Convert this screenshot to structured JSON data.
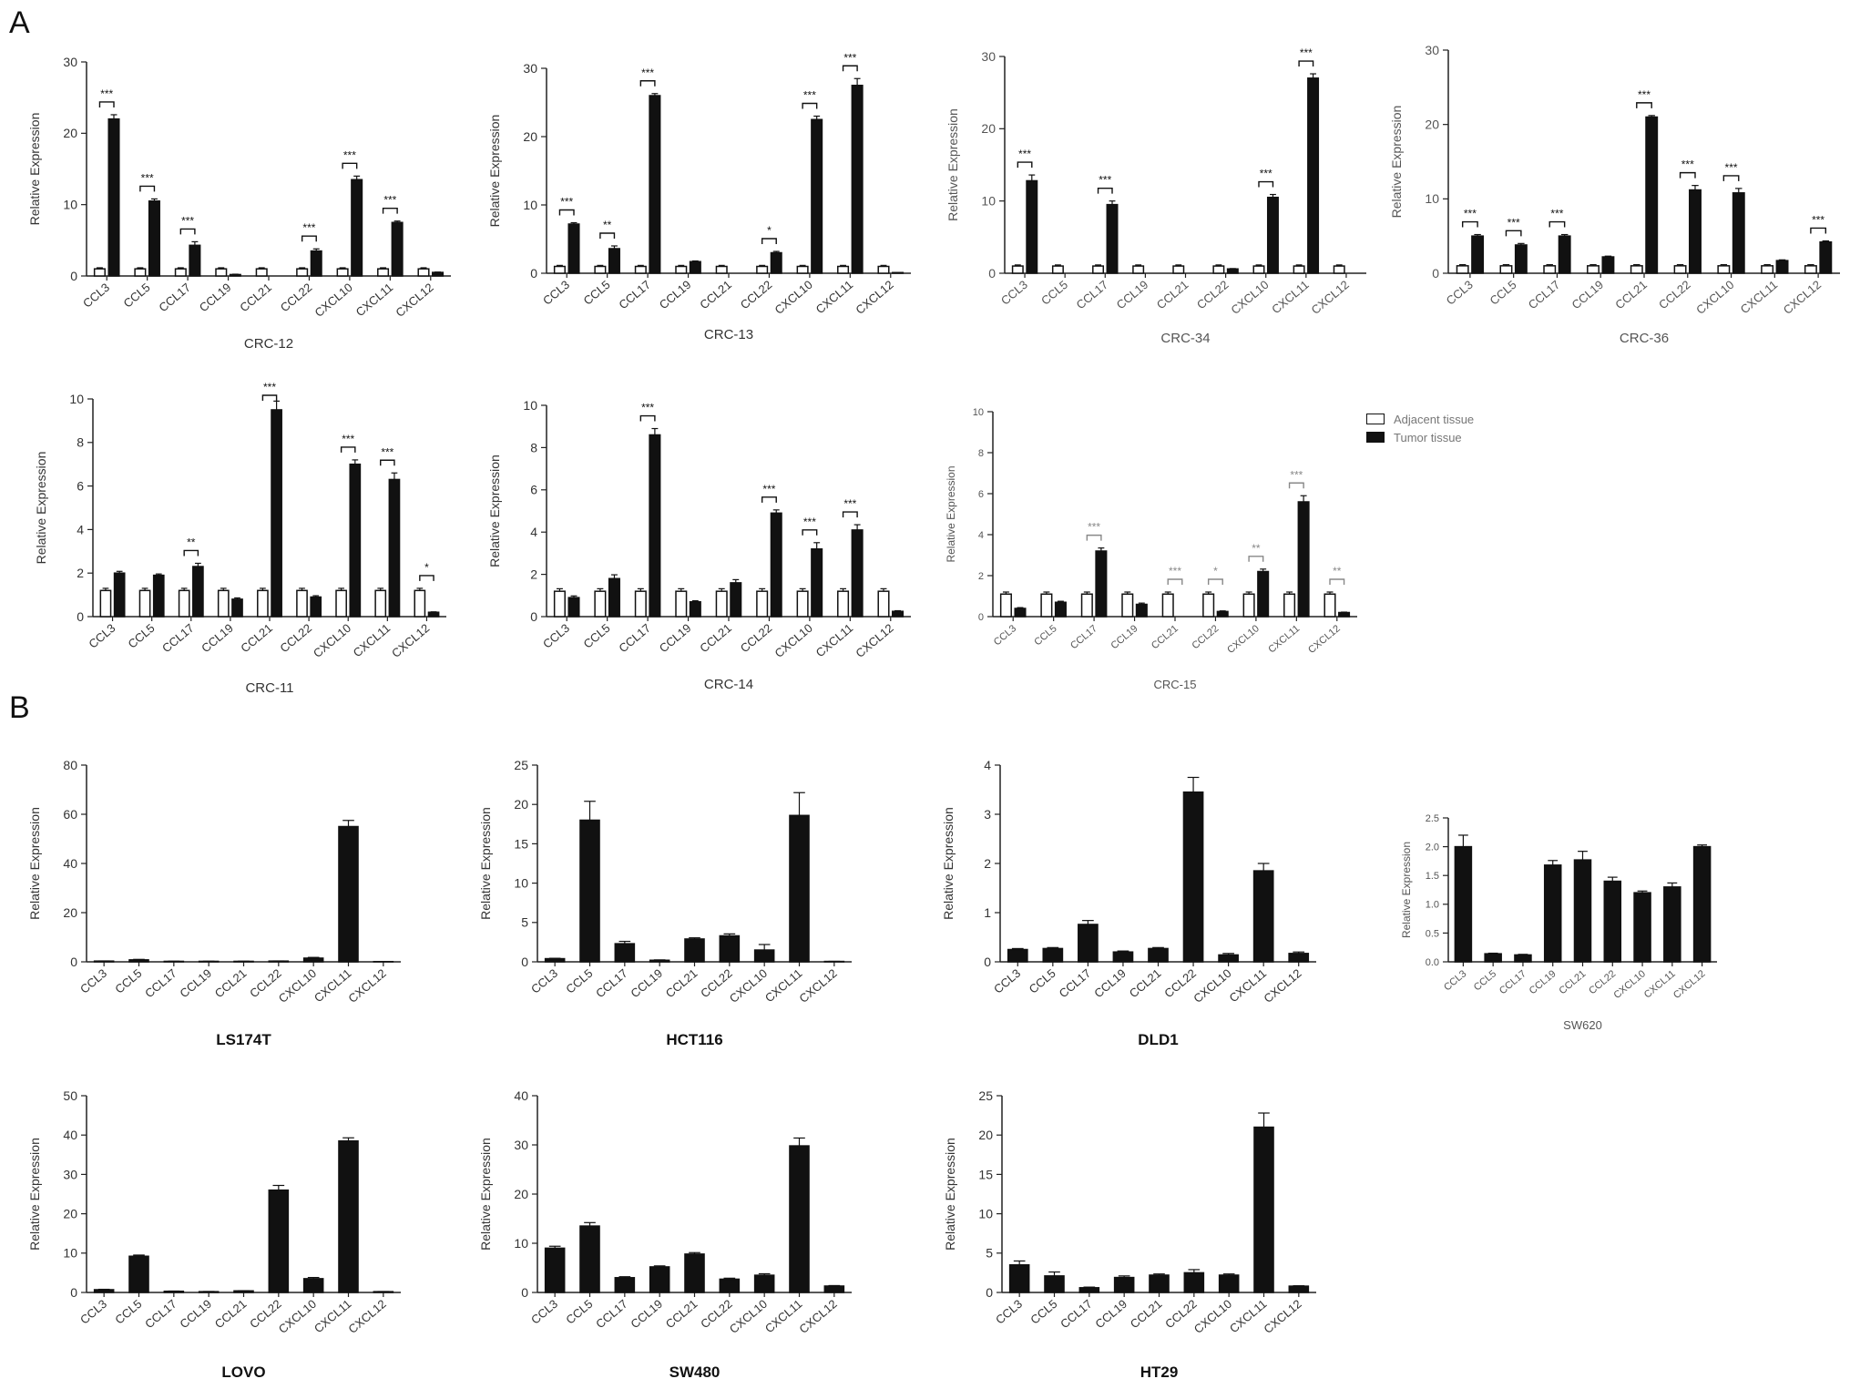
{
  "panel_labels": [
    "A",
    "B"
  ],
  "legend": {
    "adjacent_label": "Adjacent tissue",
    "tumor_label": "Tumor tissue",
    "adjacent_color": "#ffffff",
    "tumor_color": "#111111"
  },
  "chart_data": [
    {
      "id": "crc12",
      "type": "bar",
      "title": "CRC-12",
      "ylabel": "Relative Expression",
      "categories": [
        "CCL3",
        "CCL5",
        "CCL17",
        "CCL19",
        "CCL21",
        "CCL22",
        "CXCL10",
        "CXCL11",
        "CXCL12"
      ],
      "ylim": [
        0,
        30
      ],
      "yticks": [
        0,
        10,
        20,
        30
      ],
      "series": [
        {
          "name": "Adjacent tissue",
          "values": [
            1,
            1,
            1,
            1,
            1,
            1,
            1,
            1,
            1
          ],
          "errors": [
            0.15,
            0.15,
            0.15,
            0.15,
            0.15,
            0.15,
            0.15,
            0.15,
            0.15
          ]
        },
        {
          "name": "Tumor tissue",
          "values": [
            22,
            10.5,
            4.3,
            0.2,
            0,
            3.5,
            13.5,
            7.5,
            0.5
          ],
          "errors": [
            0.6,
            0.3,
            0.5,
            0.05,
            0,
            0.3,
            0.5,
            0.2,
            0.05
          ]
        }
      ],
      "sig": [
        "***",
        "***",
        "***",
        "",
        "",
        "***",
        "***",
        "***",
        ""
      ]
    },
    {
      "id": "crc13",
      "type": "bar",
      "title": "CRC-13",
      "ylabel": "Relative Expression",
      "categories": [
        "CCL3",
        "CCL5",
        "CCL17",
        "CCL19",
        "CCL21",
        "CCL22",
        "CXCL10",
        "CXCL11",
        "CXCL12"
      ],
      "ylim": [
        0,
        30
      ],
      "yticks": [
        0,
        10,
        20,
        30
      ],
      "series": [
        {
          "name": "Adjacent tissue",
          "values": [
            1,
            1,
            1,
            1,
            1,
            1,
            1,
            1,
            1
          ],
          "errors": [
            0.15,
            0.15,
            0.15,
            0.15,
            0.15,
            0.15,
            0.15,
            0.15,
            0.15
          ]
        },
        {
          "name": "Tumor tissue",
          "values": [
            7.2,
            3.6,
            26,
            1.7,
            0,
            3,
            22.5,
            27.5,
            0.1
          ],
          "errors": [
            0.2,
            0.4,
            0.3,
            0.1,
            0,
            0.2,
            0.5,
            1,
            0.02
          ]
        }
      ],
      "sig": [
        "***",
        "**",
        "***",
        "",
        "",
        "*",
        "***",
        "***",
        ""
      ]
    },
    {
      "id": "crc34",
      "type": "bar",
      "title": "CRC-34",
      "ylabel": "Relative Expression",
      "categories": [
        "CCL3",
        "CCL5",
        "CCL17",
        "CCL19",
        "CCL21",
        "CCL22",
        "CXCL10",
        "CXCL11",
        "CXCL12"
      ],
      "ylim": [
        0,
        30
      ],
      "yticks": [
        0,
        10,
        20,
        30
      ],
      "series": [
        {
          "name": "Adjacent tissue",
          "values": [
            1,
            1,
            1,
            1,
            1,
            1,
            1,
            1,
            1
          ],
          "errors": [
            0.15,
            0.15,
            0.15,
            0.15,
            0.15,
            0.15,
            0.15,
            0.15,
            0.15
          ]
        },
        {
          "name": "Tumor tissue",
          "values": [
            12.8,
            0,
            9.5,
            0,
            0,
            0.6,
            10.5,
            27,
            0
          ],
          "errors": [
            0.8,
            0,
            0.5,
            0,
            0,
            0.05,
            0.4,
            0.6,
            0
          ]
        }
      ],
      "sig": [
        "***",
        "",
        "***",
        "",
        "",
        "",
        "***",
        "***",
        ""
      ]
    },
    {
      "id": "crc36",
      "type": "bar",
      "title": "CRC-36",
      "ylabel": "Relative Expression",
      "categories": [
        "CCL3",
        "CCL5",
        "CCL17",
        "CCL19",
        "CCL21",
        "CCL22",
        "CXCL10",
        "CXCL11",
        "CXCL12"
      ],
      "ylim": [
        0,
        30
      ],
      "yticks": [
        0,
        10,
        20,
        30
      ],
      "series": [
        {
          "name": "Adjacent tissue",
          "values": [
            1,
            1,
            1,
            1,
            1,
            1,
            1,
            1,
            1
          ],
          "errors": [
            0.15,
            0.15,
            0.15,
            0.15,
            0.15,
            0.15,
            0.15,
            0.15,
            0.15
          ]
        },
        {
          "name": "Tumor tissue",
          "values": [
            5,
            3.8,
            5,
            2.2,
            21,
            11.2,
            10.8,
            1.7,
            4.2
          ],
          "errors": [
            0.2,
            0.2,
            0.2,
            0.1,
            0.2,
            0.6,
            0.6,
            0.1,
            0.15
          ]
        }
      ],
      "sig": [
        "***",
        "***",
        "***",
        "",
        "***",
        "***",
        "***",
        "",
        "***"
      ]
    },
    {
      "id": "crc11",
      "type": "bar",
      "title": "CRC-11",
      "ylabel": "Relative Expression",
      "categories": [
        "CCL3",
        "CCL5",
        "CCL17",
        "CCL19",
        "CCL21",
        "CCL22",
        "CXCL10",
        "CXCL11",
        "CXCL12"
      ],
      "ylim": [
        0,
        10
      ],
      "yticks": [
        0,
        2,
        4,
        6,
        8,
        10
      ],
      "series": [
        {
          "name": "Adjacent tissue",
          "values": [
            1.2,
            1.2,
            1.2,
            1.2,
            1.2,
            1.2,
            1.2,
            1.2,
            1.2
          ],
          "errors": [
            0.1,
            0.1,
            0.1,
            0.1,
            0.1,
            0.1,
            0.1,
            0.1,
            0.1
          ]
        },
        {
          "name": "Tumor tissue",
          "values": [
            2,
            1.9,
            2.3,
            0.8,
            9.5,
            0.9,
            7,
            6.3,
            0.2
          ],
          "errors": [
            0.08,
            0.06,
            0.15,
            0.06,
            0.4,
            0.06,
            0.2,
            0.3,
            0.02
          ]
        }
      ],
      "sig": [
        "",
        "",
        "**",
        "",
        "***",
        "",
        "***",
        "***",
        "*"
      ]
    },
    {
      "id": "crc14",
      "type": "bar",
      "title": "CRC-14",
      "ylabel": "Relative Expression",
      "categories": [
        "CCL3",
        "CCL5",
        "CCL17",
        "CCL19",
        "CCL21",
        "CCL22",
        "CXCL10",
        "CXCL11",
        "CXCL12"
      ],
      "ylim": [
        0,
        10
      ],
      "yticks": [
        0,
        2,
        4,
        6,
        8,
        10
      ],
      "series": [
        {
          "name": "Adjacent tissue",
          "values": [
            1.2,
            1.2,
            1.2,
            1.2,
            1.2,
            1.2,
            1.2,
            1.2,
            1.2
          ],
          "errors": [
            0.12,
            0.12,
            0.12,
            0.12,
            0.12,
            0.12,
            0.12,
            0.12,
            0.12
          ]
        },
        {
          "name": "Tumor tissue",
          "values": [
            0.9,
            1.8,
            8.6,
            0.7,
            1.6,
            4.9,
            3.2,
            4.1,
            0.25
          ],
          "errors": [
            0.08,
            0.18,
            0.3,
            0.05,
            0.15,
            0.15,
            0.3,
            0.25,
            0.03
          ]
        }
      ],
      "sig": [
        "",
        "",
        "***",
        "",
        "",
        "***",
        "***",
        "***",
        ""
      ]
    },
    {
      "id": "crc15",
      "type": "bar",
      "title": "CRC-15",
      "ylabel": "Relative Expression",
      "categories": [
        "CCL3",
        "CCL5",
        "CCL17",
        "CCL19",
        "CCL21",
        "CCL22",
        "CXCL10",
        "CXCL11",
        "CXCL12"
      ],
      "ylim": [
        0,
        10
      ],
      "yticks": [
        0,
        2,
        4,
        6,
        8,
        10
      ],
      "series": [
        {
          "name": "Adjacent tissue",
          "values": [
            1.1,
            1.1,
            1.1,
            1.1,
            1.1,
            1.1,
            1.1,
            1.1,
            1.1
          ],
          "errors": [
            0.1,
            0.1,
            0.1,
            0.1,
            0.1,
            0.1,
            0.1,
            0.1,
            0.1
          ]
        },
        {
          "name": "Tumor tissue",
          "values": [
            0.4,
            0.7,
            3.2,
            0.6,
            0,
            0.25,
            2.2,
            5.6,
            0.2
          ],
          "errors": [
            0.04,
            0.05,
            0.15,
            0.06,
            0,
            0.03,
            0.12,
            0.3,
            0.02
          ]
        }
      ],
      "sig": [
        "",
        "",
        "***",
        "",
        "***",
        "*",
        "**",
        "***",
        "**"
      ]
    },
    {
      "id": "ls174t",
      "type": "bar",
      "title": "LS174T",
      "ylabel": "Relative Expression",
      "categories": [
        "CCL3",
        "CCL5",
        "CCL17",
        "CCL19",
        "CCL21",
        "CCL22",
        "CXCL10",
        "CXCL11",
        "CXCL12"
      ],
      "ylim": [
        0,
        80
      ],
      "yticks": [
        0,
        20,
        40,
        60,
        80
      ],
      "series": [
        {
          "values": [
            0.3,
            0.8,
            0.2,
            0.2,
            0.2,
            0.3,
            1.5,
            55,
            0.1
          ],
          "errors": [
            0.05,
            0.2,
            0.05,
            0.05,
            0.05,
            0.05,
            0.3,
            2.5,
            0.02
          ]
        }
      ]
    },
    {
      "id": "hct116",
      "type": "bar",
      "title": "HCT116",
      "ylabel": "Relative Expression",
      "categories": [
        "CCL3",
        "CCL5",
        "CCL17",
        "CCL19",
        "CCL21",
        "CCL22",
        "CXCL10",
        "CXCL11",
        "CXCL12"
      ],
      "ylim": [
        0,
        25
      ],
      "yticks": [
        0,
        5,
        10,
        15,
        20,
        25
      ],
      "series": [
        {
          "values": [
            0.4,
            18,
            2.3,
            0.2,
            2.9,
            3.3,
            1.5,
            18.6,
            0.05
          ],
          "errors": [
            0.05,
            2.4,
            0.3,
            0.05,
            0.15,
            0.25,
            0.7,
            2.9,
            0.01
          ]
        }
      ]
    },
    {
      "id": "dld1",
      "type": "bar",
      "title": "DLD1",
      "ylabel": "Relative Expression",
      "categories": [
        "CCL3",
        "CCL5",
        "CCL17",
        "CCL19",
        "CCL21",
        "CCL22",
        "CXCL10",
        "CXCL11",
        "CXCL12"
      ],
      "ylim": [
        0,
        4
      ],
      "yticks": [
        0,
        1,
        2,
        3,
        4
      ],
      "series": [
        {
          "values": [
            0.25,
            0.27,
            0.76,
            0.2,
            0.27,
            3.45,
            0.14,
            1.85,
            0.17
          ],
          "errors": [
            0.02,
            0.02,
            0.08,
            0.02,
            0.02,
            0.3,
            0.03,
            0.15,
            0.03
          ]
        }
      ]
    },
    {
      "id": "sw620",
      "type": "bar",
      "title": "SW620",
      "ylabel": "Relative Expression",
      "categories": [
        "CCL3",
        "CCL5",
        "CCL17",
        "CCL19",
        "CCL21",
        "CCL22",
        "CXCL10",
        "CXCL11",
        "CXCL12"
      ],
      "ylim": [
        0,
        2.5
      ],
      "yticks": [
        0,
        0.5,
        1.0,
        1.5,
        2.0,
        2.5
      ],
      "yticklabels": [
        "0.0",
        "0.5",
        "1.0",
        "1.5",
        "2.0",
        "2.5"
      ],
      "series": [
        {
          "values": [
            2.0,
            0.14,
            0.12,
            1.68,
            1.77,
            1.4,
            1.2,
            1.3,
            2.0
          ],
          "errors": [
            0.2,
            0.01,
            0.01,
            0.08,
            0.15,
            0.07,
            0.03,
            0.07,
            0.03
          ]
        }
      ]
    },
    {
      "id": "lovo",
      "type": "bar",
      "title": "LOVO",
      "ylabel": "Relative Expression",
      "categories": [
        "CCL3",
        "CCL5",
        "CCL17",
        "CCL19",
        "CCL21",
        "CCL22",
        "CXCL10",
        "CXCL11",
        "CXCL12"
      ],
      "ylim": [
        0,
        50
      ],
      "yticks": [
        0,
        10,
        20,
        30,
        40,
        50
      ],
      "series": [
        {
          "values": [
            0.7,
            9.2,
            0.3,
            0.2,
            0.4,
            26,
            3.5,
            38.5,
            0.2
          ],
          "errors": [
            0.1,
            0.3,
            0.05,
            0.05,
            0.05,
            1.2,
            0.3,
            0.8,
            0.03
          ]
        }
      ]
    },
    {
      "id": "sw480",
      "type": "bar",
      "title": "SW480",
      "ylabel": "Relative Expression",
      "categories": [
        "CCL3",
        "CCL5",
        "CCL17",
        "CCL19",
        "CCL21",
        "CCL22",
        "CXCL10",
        "CXCL11",
        "CXCL12"
      ],
      "ylim": [
        0,
        40
      ],
      "yticks": [
        0,
        10,
        20,
        30,
        40
      ],
      "series": [
        {
          "values": [
            9,
            13.5,
            3,
            5.2,
            7.8,
            2.7,
            3.5,
            29.8,
            1.3
          ],
          "errors": [
            0.4,
            0.7,
            0.2,
            0.2,
            0.3,
            0.2,
            0.3,
            1.6,
            0.1
          ]
        }
      ]
    },
    {
      "id": "ht29",
      "type": "bar",
      "title": "HT29",
      "ylabel": "Relative Expression",
      "categories": [
        "CCL3",
        "CCL5",
        "CCL17",
        "CCL19",
        "CCL21",
        "CCL22",
        "CXCL10",
        "CXCL11",
        "CXCL12"
      ],
      "ylim": [
        0,
        25
      ],
      "yticks": [
        0,
        5,
        10,
        15,
        20,
        25
      ],
      "series": [
        {
          "values": [
            3.5,
            2.1,
            0.6,
            1.9,
            2.2,
            2.5,
            2.2,
            21,
            0.8
          ],
          "errors": [
            0.5,
            0.5,
            0.08,
            0.2,
            0.15,
            0.4,
            0.15,
            1.8,
            0.05
          ]
        }
      ]
    }
  ]
}
